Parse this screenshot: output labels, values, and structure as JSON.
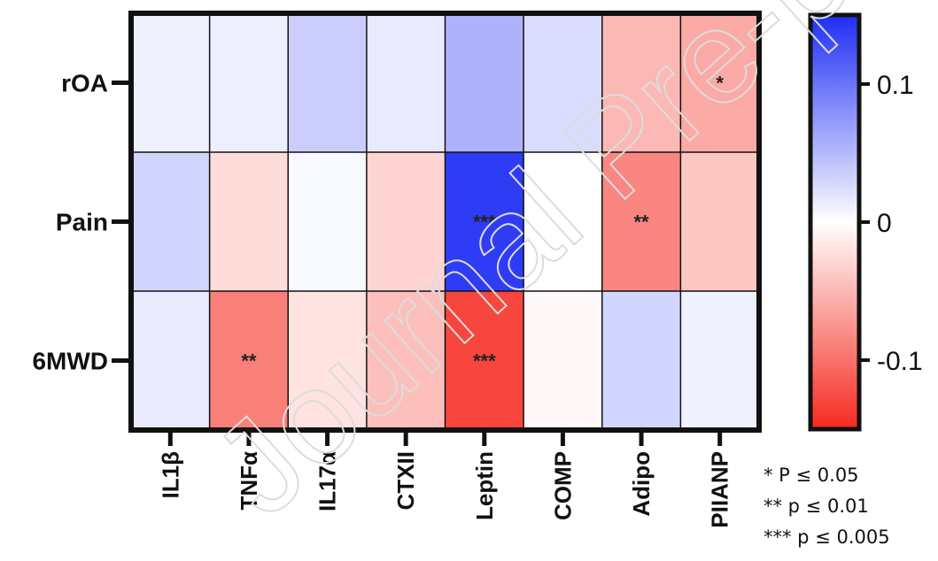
{
  "chart_data": {
    "type": "heatmap",
    "rows": [
      "rOA",
      "Pain",
      "6MWD"
    ],
    "columns": [
      "IL1β",
      "TNFα",
      "IL17α",
      "CTXII",
      "Leptin",
      "COMP",
      "Adipo",
      "PIIANP"
    ],
    "values": [
      [
        0.01,
        0.012,
        0.035,
        0.015,
        0.055,
        0.025,
        -0.05,
        -0.06
      ],
      [
        0.03,
        -0.025,
        0.005,
        -0.03,
        0.14,
        0.0,
        -0.085,
        -0.04
      ],
      [
        0.015,
        -0.09,
        -0.02,
        -0.045,
        -0.13,
        -0.005,
        0.03,
        0.01
      ]
    ],
    "significance": [
      [
        "",
        "",
        "",
        "",
        "",
        "",
        "",
        "*"
      ],
      [
        "",
        "",
        "",
        "",
        "***",
        "",
        "**",
        ""
      ],
      [
        "",
        "**",
        "",
        "",
        "***",
        "",
        "",
        ""
      ]
    ],
    "colorbar": {
      "range": [
        -0.15,
        0.15
      ],
      "ticks": [
        0.1,
        0,
        -0.1
      ],
      "tick_labels": [
        "0.1",
        "0",
        "-0.1"
      ],
      "colors": {
        "max": "#1f2ef5",
        "mid": "#ffffff",
        "min": "#f52a1f"
      }
    },
    "legend_notes": [
      "* P ≤ 0.05",
      "** p ≤ 0.01",
      "*** p ≤ 0.005"
    ],
    "title": "",
    "xlabel": "",
    "ylabel": ""
  },
  "watermark": "Journal Pre-proof"
}
